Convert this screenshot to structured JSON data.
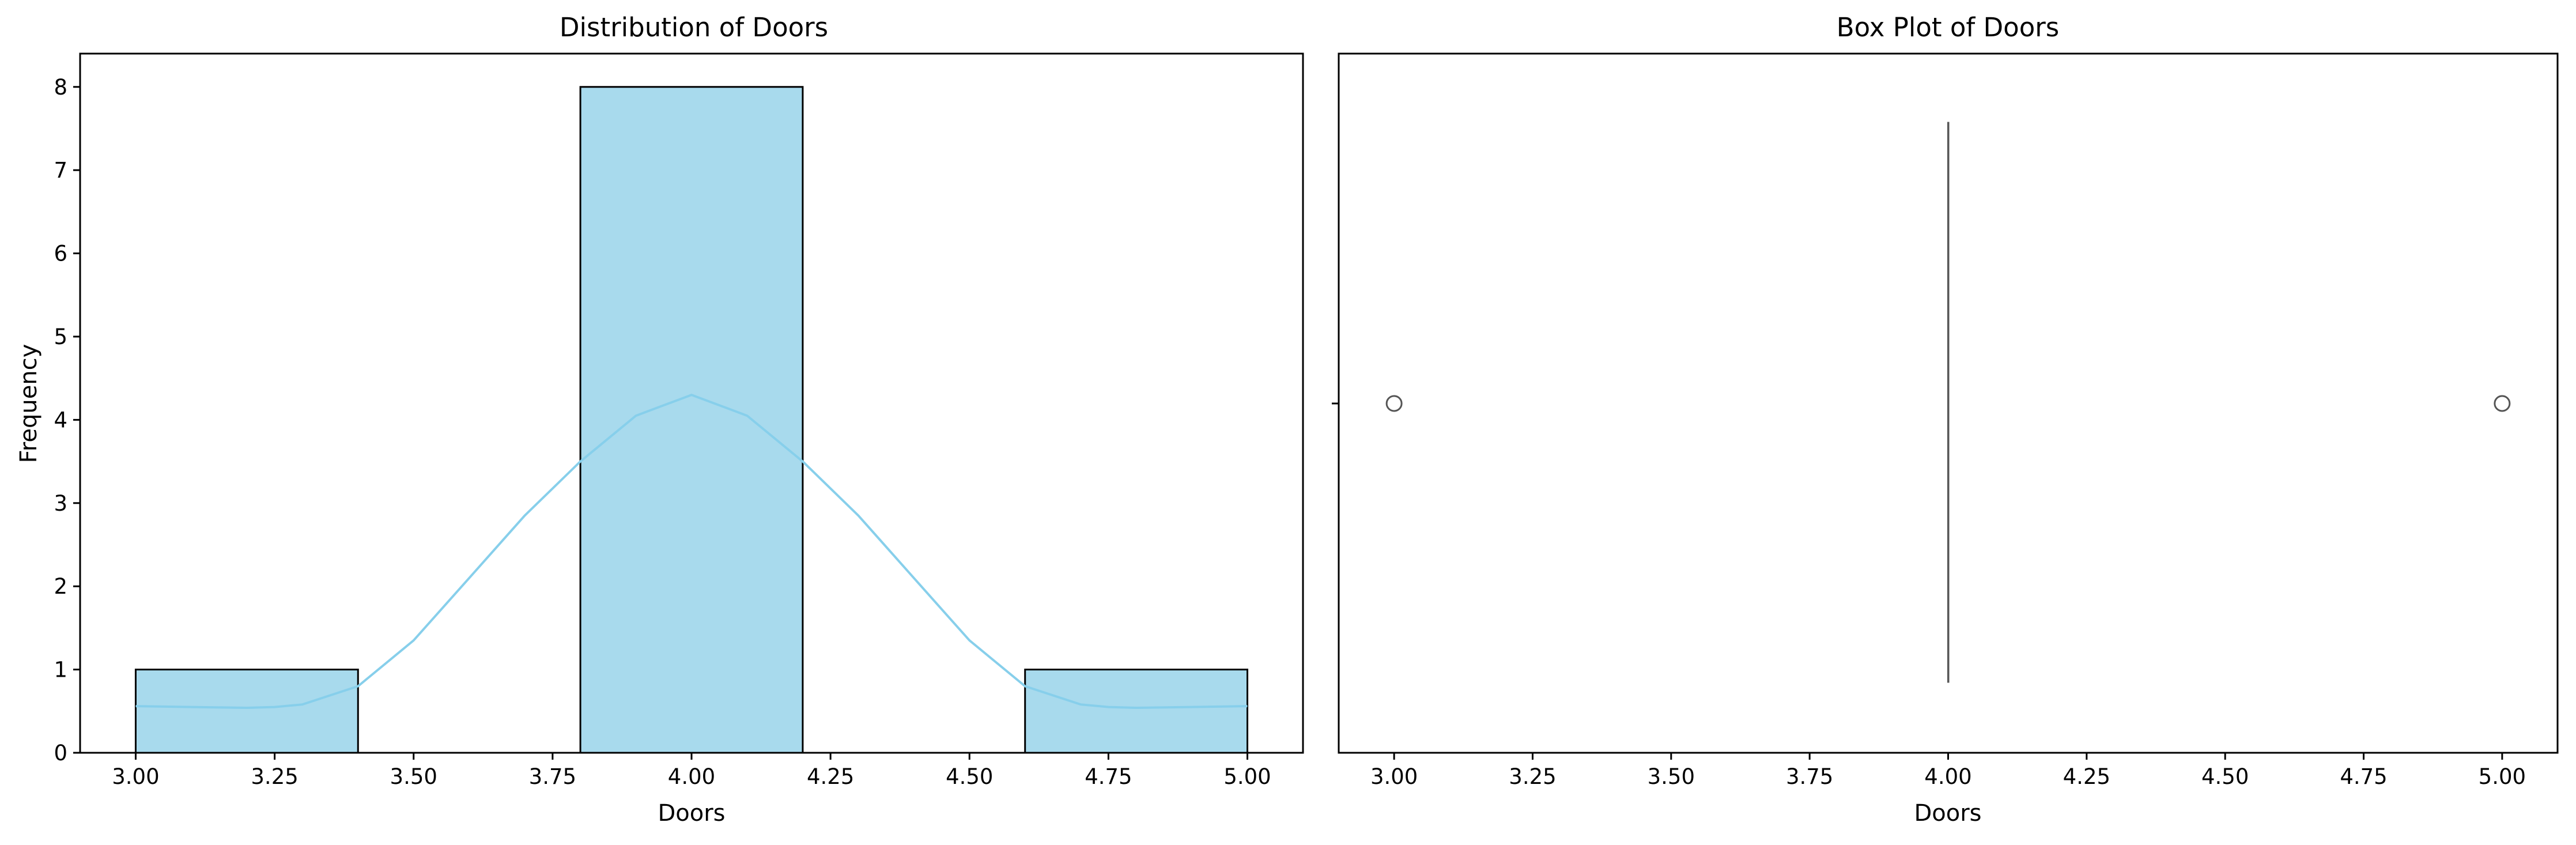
{
  "colors": {
    "bar_fill": "#a8daed",
    "bar_edge": "#000000",
    "kde_line": "#87cfeb",
    "box_line": "#555555",
    "axes": "#000000"
  },
  "chart_data": [
    {
      "type": "bar",
      "subtype": "histogram_with_kde",
      "title": "Distribution of Doors",
      "xlabel": "Doors",
      "ylabel": "Frequency",
      "xlim": [
        2.9,
        5.1
      ],
      "ylim": [
        0,
        8.4
      ],
      "grid": false,
      "bins": [
        {
          "x0": 3.0,
          "x1": 3.4,
          "count": 1
        },
        {
          "x0": 3.4,
          "x1": 3.8,
          "count": 0
        },
        {
          "x0": 3.8,
          "x1": 4.2,
          "count": 8
        },
        {
          "x0": 4.2,
          "x1": 4.6,
          "count": 0
        },
        {
          "x0": 4.6,
          "x1": 5.0,
          "count": 1
        }
      ],
      "kde": {
        "x": [
          3.0,
          3.1,
          3.2,
          3.25,
          3.3,
          3.4,
          3.5,
          3.6,
          3.7,
          3.8,
          3.9,
          4.0,
          4.1,
          4.2,
          4.3,
          4.4,
          4.5,
          4.6,
          4.7,
          4.75,
          4.8,
          4.9,
          5.0
        ],
        "y": [
          0.56,
          0.55,
          0.54,
          0.55,
          0.58,
          0.8,
          1.35,
          2.1,
          2.85,
          3.5,
          4.05,
          4.3,
          4.05,
          3.5,
          2.85,
          2.1,
          1.35,
          0.8,
          0.58,
          0.55,
          0.54,
          0.55,
          0.56
        ]
      },
      "xticks": [
        "3.00",
        "3.25",
        "3.50",
        "3.75",
        "4.00",
        "4.25",
        "4.50",
        "4.75",
        "5.00"
      ],
      "yticks": [
        "0",
        "1",
        "2",
        "3",
        "4",
        "5",
        "6",
        "7",
        "8"
      ]
    },
    {
      "type": "box",
      "title": "Box Plot of Doors",
      "xlabel": "Doors",
      "xlim": [
        2.9,
        5.1
      ],
      "grid": false,
      "box": {
        "q1": 4.0,
        "median": 4.0,
        "q3": 4.0,
        "whisker_low": 4.0,
        "whisker_high": 4.0
      },
      "outliers": [
        3.0,
        5.0
      ],
      "xticks": [
        "3.00",
        "3.25",
        "3.50",
        "3.75",
        "4.00",
        "4.25",
        "4.50",
        "4.75",
        "5.00"
      ]
    }
  ]
}
